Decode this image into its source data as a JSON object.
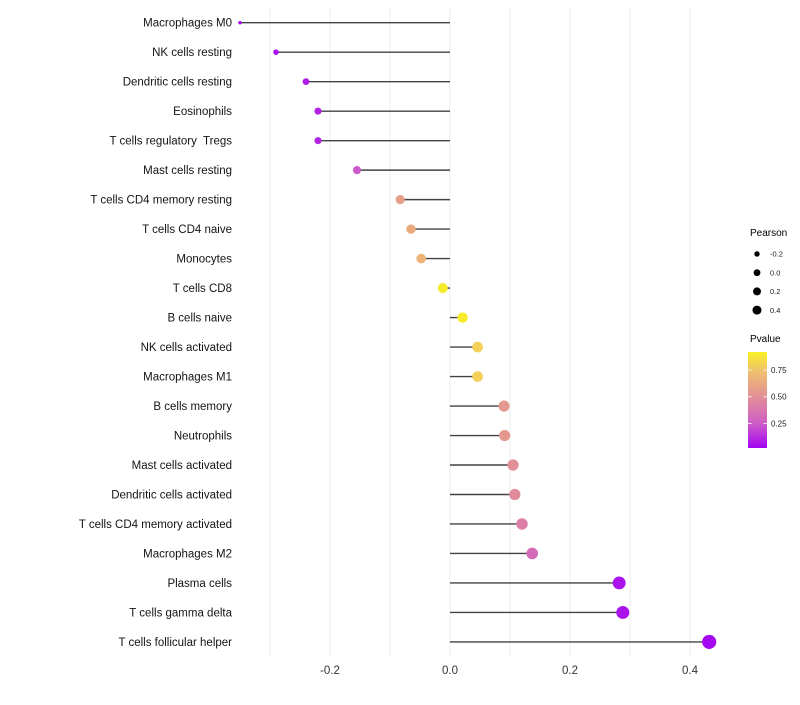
{
  "chart_data": {
    "type": "lollipop",
    "orientation": "horizontal",
    "title": "",
    "xlabel": "",
    "ylabel": "",
    "grid": true,
    "xlim": [
      -0.38,
      0.46
    ],
    "categories": [
      "Macrophages M0",
      "NK cells resting",
      "Dendritic cells resting",
      "Eosinophils",
      "T cells regulatory  Tregs",
      "Mast cells resting",
      "T cells CD4 memory resting",
      "T cells CD4 naive",
      "Monocytes",
      "T cells CD8",
      "B cells naive",
      "NK cells activated",
      "Macrophages M1",
      "B cells memory",
      "Neutrophils",
      "Mast cells activated",
      "Dendritic cells activated",
      "T cells CD4 memory activated",
      "Macrophages M2",
      "Plasma cells",
      "T cells gamma delta",
      "T cells follicular helper"
    ],
    "series": [
      {
        "name": "Pearson",
        "values": [
          -0.35,
          -0.29,
          -0.24,
          -0.22,
          -0.22,
          -0.155,
          -0.083,
          -0.065,
          -0.048,
          -0.012,
          0.021,
          0.046,
          0.046,
          0.09,
          0.091,
          0.105,
          0.108,
          0.12,
          0.137,
          0.282,
          0.288,
          0.432
        ]
      },
      {
        "name": "Pvalue",
        "values": [
          0.02,
          0.05,
          0.08,
          0.1,
          0.1,
          0.24,
          0.58,
          0.63,
          0.68,
          0.9,
          0.9,
          0.8,
          0.8,
          0.55,
          0.55,
          0.5,
          0.48,
          0.42,
          0.32,
          0.06,
          0.06,
          0.03
        ]
      }
    ],
    "x_ticks": {
      "values": [
        -0.2,
        0.0,
        0.2,
        0.4
      ],
      "labels": [
        "-0.2",
        "0.0",
        "0.2",
        "0.4"
      ]
    },
    "x_gridlines": [
      -0.3,
      -0.2,
      -0.1,
      0.0,
      0.1,
      0.2,
      0.3,
      0.4
    ],
    "baseline_value": 0.0,
    "legend_size": {
      "title": "Pearson",
      "entries": [
        {
          "label": "-0.2",
          "r": 2.7
        },
        {
          "label": "0.0",
          "r": 3.4
        },
        {
          "label": "0.2",
          "r": 4.0
        },
        {
          "label": "0.4",
          "r": 4.5
        }
      ],
      "dot_color": "#000000"
    },
    "legend_color": {
      "title": "Pvalue",
      "bar_range": [
        0.02,
        0.92
      ],
      "ticks": {
        "values": [
          0.75,
          0.5,
          0.25
        ],
        "labels": [
          "0.75",
          "0.50",
          "0.25"
        ]
      },
      "gradient_stops": [
        {
          "p": 0.92,
          "color": "#F9F123"
        },
        {
          "p": 0.75,
          "color": "#F0C26C"
        },
        {
          "p": 0.5,
          "color": "#E28F96"
        },
        {
          "p": 0.25,
          "color": "#CE5DC7"
        },
        {
          "p": 0.02,
          "color": "#A204F2"
        }
      ]
    }
  },
  "style": {
    "background": "#FFFFFF",
    "grid_color": "#ECECEC",
    "stem_color": "#424242",
    "category_label_color": "#141414",
    "axis_tick_label_color": "#333333"
  }
}
